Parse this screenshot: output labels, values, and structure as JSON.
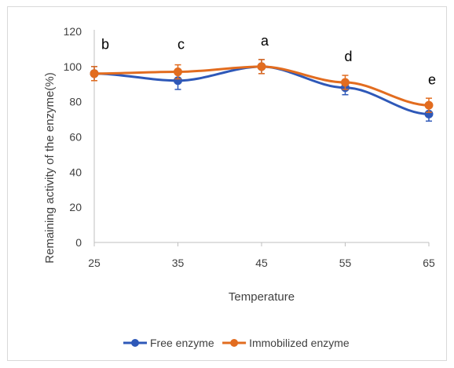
{
  "chart_data": {
    "type": "line",
    "x": [
      25,
      35,
      45,
      55,
      65
    ],
    "xlabel": "Temperature",
    "ylabel": "Remaining activity of the enzyme(%)",
    "xlim": [
      25,
      65
    ],
    "ylim": [
      0,
      120
    ],
    "x_ticks": [
      "25",
      "35",
      "45",
      "55",
      "65"
    ],
    "y_ticks": [
      "0",
      "20",
      "40",
      "60",
      "80",
      "100",
      "120"
    ],
    "grid": false,
    "legend_position": "bottom",
    "series": [
      {
        "name": "Free enzyme",
        "color": "#2e58b8",
        "values": [
          96,
          92,
          100,
          88,
          73
        ],
        "error": [
          4,
          5,
          4,
          4,
          4
        ]
      },
      {
        "name": "Immobilized enzyme",
        "color": "#e26c1f",
        "values": [
          96,
          97,
          100,
          91,
          78
        ],
        "error": [
          4,
          4,
          4,
          4,
          4
        ]
      }
    ],
    "annotations": [
      {
        "x": 25,
        "y": 110,
        "text": "b"
      },
      {
        "x": 35,
        "y": 110,
        "text": "c"
      },
      {
        "x": 45,
        "y": 112,
        "text": "a"
      },
      {
        "x": 55,
        "y": 103,
        "text": "d"
      },
      {
        "x": 65,
        "y": 90,
        "text": "e"
      }
    ]
  }
}
